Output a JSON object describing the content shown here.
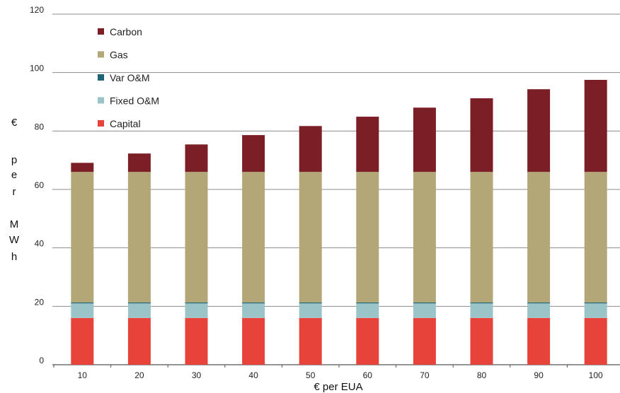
{
  "chart_data": {
    "type": "bar",
    "stacked": true,
    "categories": [
      "10",
      "20",
      "30",
      "40",
      "50",
      "60",
      "70",
      "80",
      "90",
      "100"
    ],
    "series": [
      {
        "name": "Capital",
        "color": "#e8433a",
        "values": [
          16,
          16,
          16,
          16,
          16,
          16,
          16,
          16,
          16,
          16
        ]
      },
      {
        "name": "Fixed O&M",
        "color": "#9bc4c9",
        "values": [
          5,
          5,
          5,
          5,
          5,
          5,
          5,
          5,
          5,
          5
        ]
      },
      {
        "name": "Var O&M",
        "color": "#1f6474",
        "values": [
          0.3,
          0.3,
          0.3,
          0.3,
          0.3,
          0.3,
          0.3,
          0.3,
          0.3,
          0.3
        ]
      },
      {
        "name": "Gas",
        "color": "#b3a777",
        "values": [
          44.7,
          44.7,
          44.7,
          44.7,
          44.7,
          44.7,
          44.7,
          44.7,
          44.7,
          44.7
        ]
      },
      {
        "name": "Carbon",
        "color": "#7b1e26",
        "values": [
          3.1,
          6.3,
          9.4,
          12.6,
          15.7,
          18.9,
          22.0,
          25.2,
          28.3,
          31.5
        ]
      }
    ],
    "legend_order": [
      "Carbon",
      "Gas",
      "Var O&M",
      "Fixed O&M",
      "Capital"
    ],
    "xlabel": "€ per EUA",
    "ylabel": "€ per MWh",
    "ylabel_lines": [
      "€",
      "p",
      "e",
      "r",
      "",
      "M",
      "W",
      "h"
    ],
    "ylim": [
      0,
      120
    ],
    "yticks": [
      "0",
      "20",
      "40",
      "60",
      "80",
      "100",
      "120"
    ],
    "grid": true,
    "legend_position": "top-left"
  }
}
